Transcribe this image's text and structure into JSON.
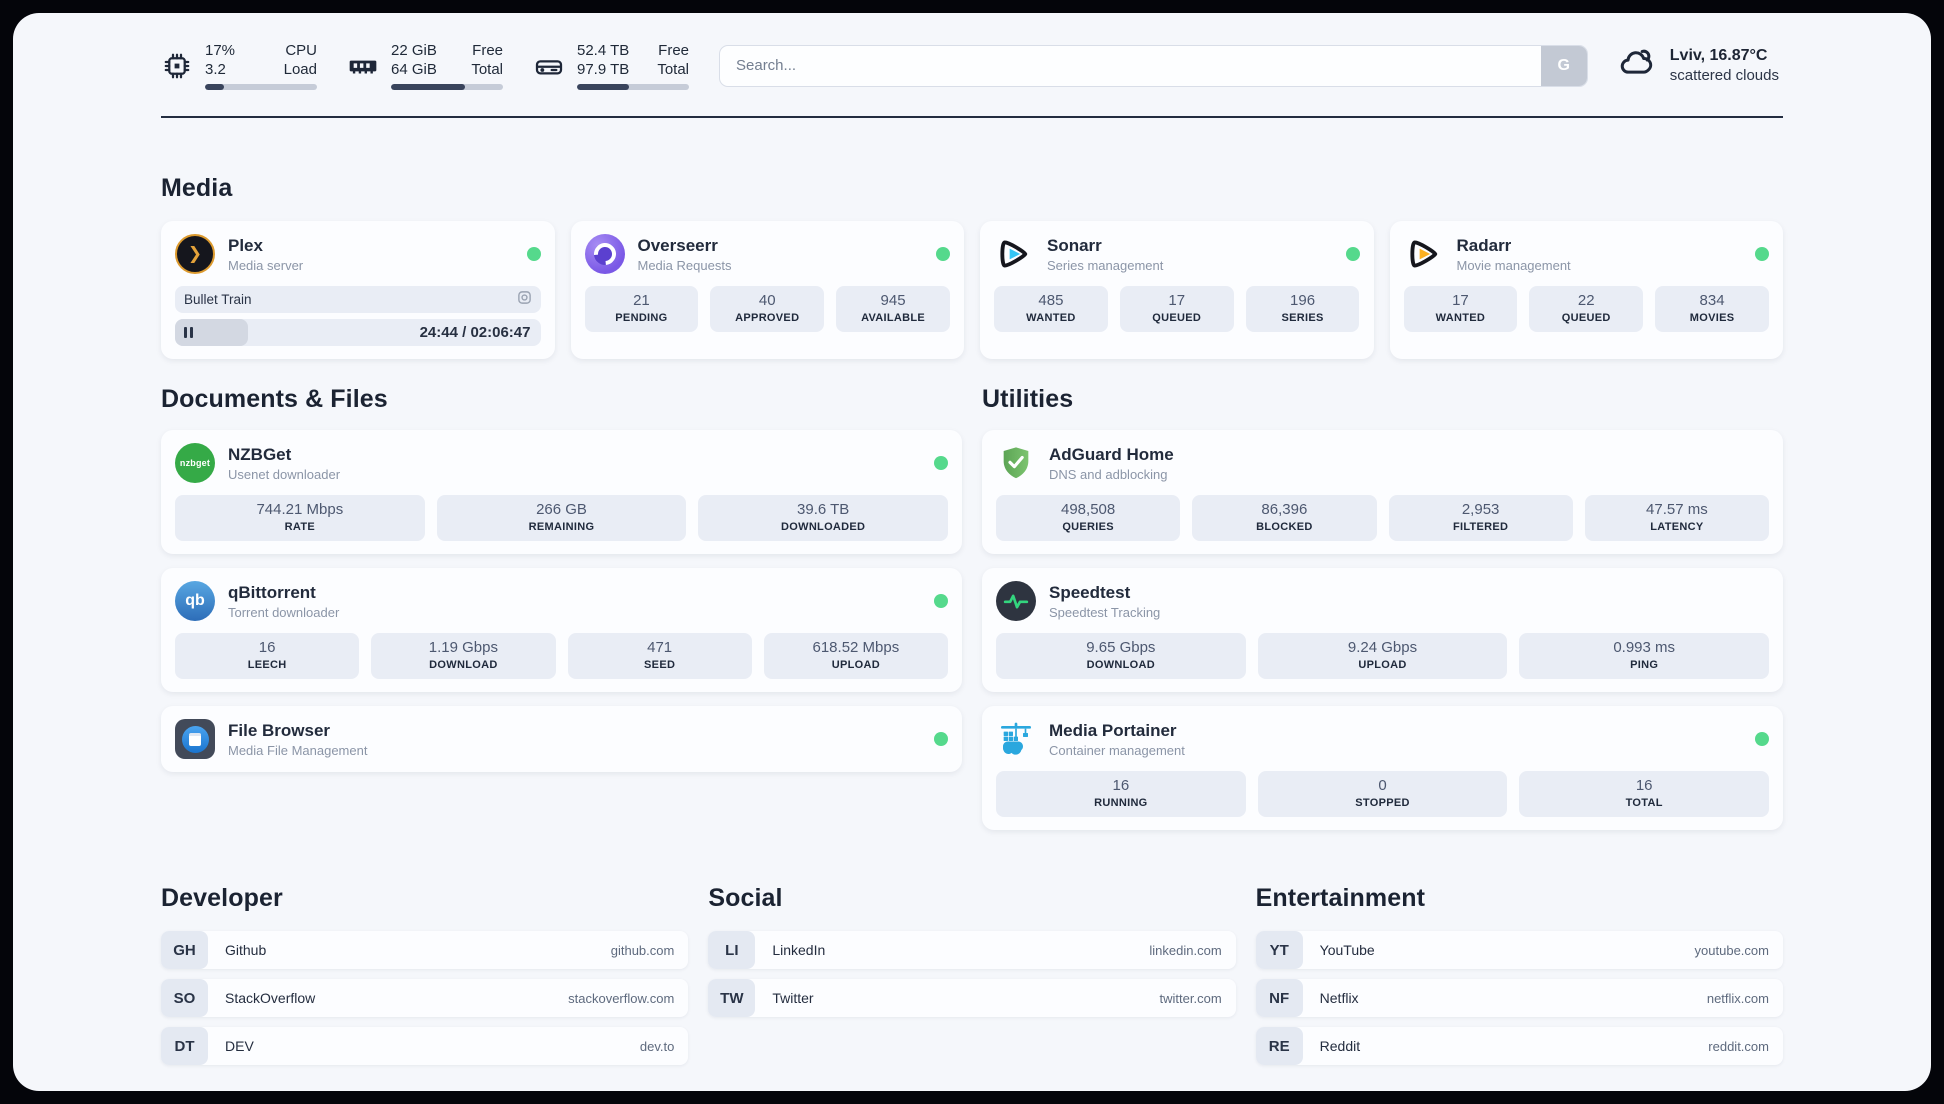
{
  "header": {
    "stats": [
      {
        "icon": "cpu-icon",
        "value_top": "17%",
        "value_bottom": "3.2",
        "label_top": "CPU",
        "label_bottom": "Load",
        "progress_pct": 17
      },
      {
        "icon": "ram-icon",
        "value_top": "22 GiB",
        "value_bottom": "64 GiB",
        "label_top": "Free",
        "label_bottom": "Total",
        "progress_pct": 66
      },
      {
        "icon": "disk-icon",
        "value_top": "52.4 TB",
        "value_bottom": "97.9 TB",
        "label_top": "Free",
        "label_bottom": "Total",
        "progress_pct": 46
      }
    ],
    "search": {
      "placeholder": "Search...",
      "button_label": "G"
    },
    "weather": {
      "summary": "Lviv, 16.87°C",
      "condition": "scattered clouds"
    }
  },
  "sections": {
    "media": "Media",
    "documents": "Documents & Files",
    "utilities": "Utilities"
  },
  "apps": {
    "plex": {
      "name": "Plex",
      "desc": "Media server",
      "icon_glyph": "❯",
      "now_playing": "Bullet Train",
      "time": "24:44 / 02:06:47",
      "progress_pct": 20
    },
    "overseerr": {
      "name": "Overseerr",
      "desc": "Media Requests",
      "stats": [
        {
          "value": "21",
          "label": "PENDING"
        },
        {
          "value": "40",
          "label": "APPROVED"
        },
        {
          "value": "945",
          "label": "AVAILABLE"
        }
      ]
    },
    "sonarr": {
      "name": "Sonarr",
      "desc": "Series management",
      "stats": [
        {
          "value": "485",
          "label": "WANTED"
        },
        {
          "value": "17",
          "label": "QUEUED"
        },
        {
          "value": "196",
          "label": "SERIES"
        }
      ]
    },
    "radarr": {
      "name": "Radarr",
      "desc": "Movie management",
      "stats": [
        {
          "value": "17",
          "label": "WANTED"
        },
        {
          "value": "22",
          "label": "QUEUED"
        },
        {
          "value": "834",
          "label": "MOVIES"
        }
      ]
    },
    "nzbget": {
      "name": "NZBGet",
      "desc": "Usenet downloader",
      "icon_text": "nzbget",
      "stats": [
        {
          "value": "744.21 Mbps",
          "label": "RATE"
        },
        {
          "value": "266 GB",
          "label": "REMAINING"
        },
        {
          "value": "39.6 TB",
          "label": "DOWNLOADED"
        }
      ]
    },
    "qbittorrent": {
      "name": "qBittorrent",
      "desc": "Torrent downloader",
      "icon_text": "qb",
      "stats": [
        {
          "value": "16",
          "label": "LEECH"
        },
        {
          "value": "1.19 Gbps",
          "label": "DOWNLOAD"
        },
        {
          "value": "471",
          "label": "SEED"
        },
        {
          "value": "618.52 Mbps",
          "label": "UPLOAD"
        }
      ]
    },
    "filebrowser": {
      "name": "File Browser",
      "desc": "Media File Management"
    },
    "adguard": {
      "name": "AdGuard Home",
      "desc": "DNS and adblocking",
      "stats": [
        {
          "value": "498,508",
          "label": "QUERIES"
        },
        {
          "value": "86,396",
          "label": "BLOCKED"
        },
        {
          "value": "2,953",
          "label": "FILTERED"
        },
        {
          "value": "47.57 ms",
          "label": "LATENCY"
        }
      ]
    },
    "speedtest": {
      "name": "Speedtest",
      "desc": "Speedtest Tracking",
      "stats": [
        {
          "value": "9.65 Gbps",
          "label": "DOWNLOAD"
        },
        {
          "value": "9.24 Gbps",
          "label": "UPLOAD"
        },
        {
          "value": "0.993 ms",
          "label": "PING"
        }
      ]
    },
    "portainer": {
      "name": "Media Portainer",
      "desc": "Container management",
      "stats": [
        {
          "value": "16",
          "label": "RUNNING"
        },
        {
          "value": "0",
          "label": "STOPPED"
        },
        {
          "value": "16",
          "label": "TOTAL"
        }
      ]
    }
  },
  "bookmarks": {
    "developer": {
      "title": "Developer",
      "links": [
        {
          "abbr": "GH",
          "name": "Github",
          "url": "github.com"
        },
        {
          "abbr": "SO",
          "name": "StackOverflow",
          "url": "stackoverflow.com"
        },
        {
          "abbr": "DT",
          "name": "DEV",
          "url": "dev.to"
        }
      ]
    },
    "social": {
      "title": "Social",
      "links": [
        {
          "abbr": "LI",
          "name": "LinkedIn",
          "url": "linkedin.com"
        },
        {
          "abbr": "TW",
          "name": "Twitter",
          "url": "twitter.com"
        }
      ]
    },
    "entertainment": {
      "title": "Entertainment",
      "links": [
        {
          "abbr": "YT",
          "name": "YouTube",
          "url": "youtube.com"
        },
        {
          "abbr": "NF",
          "name": "Netflix",
          "url": "netflix.com"
        },
        {
          "abbr": "RE",
          "name": "Reddit",
          "url": "reddit.com"
        }
      ]
    }
  }
}
